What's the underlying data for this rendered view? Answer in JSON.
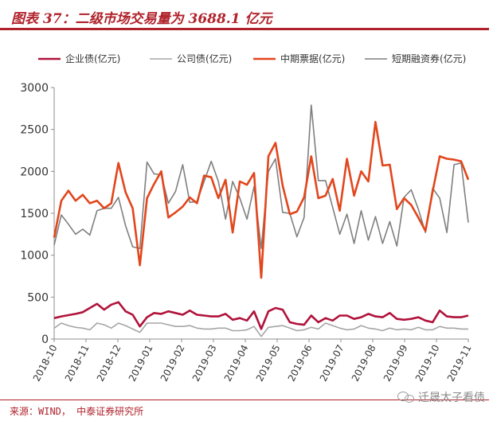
{
  "header": {
    "title": "图表 37：二级市场交易量为 3688.1 亿元"
  },
  "footer": {
    "source": "来源：WIND， 中泰证券研究所",
    "watermark": "迁晟太子看债"
  },
  "colors": {
    "accent": "#b0222b",
    "enterprise_bond": "#b0123b",
    "corporate_bond": "#a6a6a6",
    "mtn": "#e2461c",
    "cp": "#7f7f7f",
    "axis": "#8c8c8c"
  },
  "chart_data": {
    "type": "line",
    "title": "",
    "xlabel": "",
    "ylabel": "",
    "ylim": [
      0,
      3000
    ],
    "yticks": [
      0,
      500,
      1000,
      1500,
      2000,
      2500,
      3000
    ],
    "xtick_labels": [
      "2018-10",
      "2018-11",
      "2018-12",
      "2019-01",
      "2019-02",
      "2019-03",
      "2019-04",
      "2019-05",
      "2019-06",
      "2019-07",
      "2019-08",
      "2019-09",
      "2019-10",
      "2019-11"
    ],
    "grid": false,
    "legend_position": "top",
    "series": [
      {
        "name": "企业债(亿元)",
        "color": "#b0123b",
        "values": [
          250,
          270,
          285,
          300,
          320,
          370,
          420,
          350,
          410,
          440,
          330,
          290,
          150,
          260,
          310,
          300,
          330,
          310,
          290,
          340,
          290,
          280,
          270,
          270,
          300,
          230,
          250,
          220,
          330,
          120,
          330,
          370,
          350,
          200,
          180,
          170,
          280,
          200,
          250,
          220,
          280,
          280,
          240,
          260,
          300,
          270,
          260,
          310,
          240,
          230,
          240,
          260,
          220,
          200,
          340,
          270,
          260,
          260,
          280
        ]
      },
      {
        "name": "公司债(亿元)",
        "color": "#a6a6a6",
        "values": [
          130,
          190,
          160,
          140,
          130,
          110,
          190,
          170,
          130,
          190,
          160,
          120,
          80,
          190,
          190,
          190,
          170,
          150,
          150,
          160,
          130,
          120,
          120,
          130,
          130,
          100,
          100,
          110,
          150,
          30,
          140,
          150,
          160,
          130,
          100,
          110,
          140,
          120,
          190,
          160,
          130,
          110,
          120,
          160,
          130,
          120,
          100,
          130,
          110,
          120,
          110,
          140,
          110,
          110,
          150,
          130,
          130,
          120,
          120
        ]
      },
      {
        "name": "中期票据(亿元)",
        "color": "#e2461c",
        "values": [
          1210,
          1650,
          1770,
          1650,
          1720,
          1620,
          1650,
          1560,
          1620,
          2100,
          1750,
          1560,
          880,
          1680,
          1850,
          2000,
          1450,
          1510,
          1580,
          1690,
          1620,
          1950,
          1930,
          1680,
          1900,
          1270,
          1880,
          1840,
          1980,
          730,
          2180,
          2340,
          1830,
          1490,
          1520,
          1690,
          2180,
          1680,
          1710,
          1910,
          1530,
          2150,
          1710,
          2000,
          1880,
          2590,
          2070,
          2080,
          1550,
          1680,
          1600,
          1450,
          1290,
          1760,
          2180,
          2150,
          2140,
          2120,
          1900
        ]
      },
      {
        "name": "短期融资券(亿元)",
        "color": "#7f7f7f",
        "values": [
          1120,
          1480,
          1370,
          1250,
          1310,
          1240,
          1530,
          1560,
          1560,
          1690,
          1350,
          1100,
          1080,
          2110,
          1970,
          1960,
          1620,
          1760,
          2080,
          1630,
          1640,
          1880,
          2120,
          1880,
          1430,
          1880,
          1680,
          1430,
          1820,
          1080,
          2000,
          2150,
          1510,
          1500,
          1220,
          1450,
          2790,
          1890,
          1890,
          1570,
          1250,
          1490,
          1140,
          1530,
          1180,
          1460,
          1140,
          1400,
          1110,
          1690,
          1780,
          1550,
          1270,
          1800,
          1680,
          1270,
          2080,
          2100,
          1390
        ]
      }
    ]
  }
}
